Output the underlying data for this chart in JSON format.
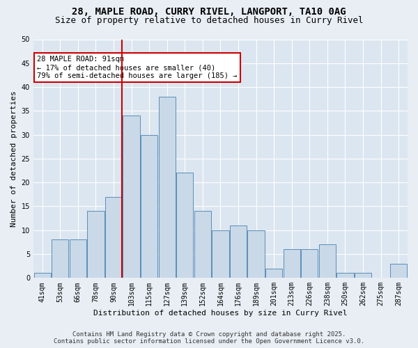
{
  "title1": "28, MAPLE ROAD, CURRY RIVEL, LANGPORT, TA10 0AG",
  "title2": "Size of property relative to detached houses in Curry Rivel",
  "xlabel": "Distribution of detached houses by size in Curry Rivel",
  "ylabel": "Number of detached properties",
  "annotation_line1": "28 MAPLE ROAD: 91sqm",
  "annotation_line2": "← 17% of detached houses are smaller (40)",
  "annotation_line3": "79% of semi-detached houses are larger (185) →",
  "footer1": "Contains HM Land Registry data © Crown copyright and database right 2025.",
  "footer2": "Contains public sector information licensed under the Open Government Licence v3.0.",
  "bin_labels": [
    "41sqm",
    "53sqm",
    "66sqm",
    "78sqm",
    "90sqm",
    "103sqm",
    "115sqm",
    "127sqm",
    "139sqm",
    "152sqm",
    "164sqm",
    "176sqm",
    "189sqm",
    "201sqm",
    "213sqm",
    "226sqm",
    "238sqm",
    "250sqm",
    "262sqm",
    "275sqm",
    "287sqm"
  ],
  "bar_values": [
    1,
    8,
    8,
    14,
    17,
    34,
    30,
    38,
    22,
    14,
    10,
    11,
    10,
    2,
    6,
    6,
    7,
    1,
    1,
    0,
    3
  ],
  "vline_bar_index": 4,
  "bar_color": "#c9d9e8",
  "bar_edgecolor": "#5b8db8",
  "vline_color": "#cc0000",
  "annotation_box_edgecolor": "#cc0000",
  "background_color": "#e8eef4",
  "plot_bg_color": "#dce6f0",
  "ylim": [
    0,
    50
  ],
  "yticks": [
    0,
    5,
    10,
    15,
    20,
    25,
    30,
    35,
    40,
    45,
    50
  ],
  "title_fontsize": 10,
  "subtitle_fontsize": 9,
  "axis_label_fontsize": 8,
  "tick_fontsize": 7,
  "annotation_fontsize": 7.5,
  "footer_fontsize": 6.5
}
